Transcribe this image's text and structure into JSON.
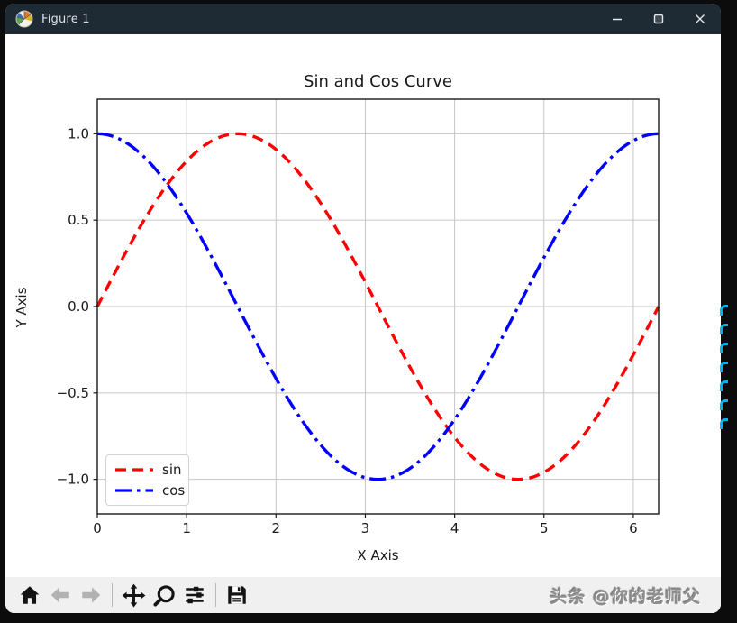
{
  "window": {
    "title": "Figure 1",
    "titlebar_bg": "#1e2b34",
    "controls": {
      "minimize": "minimize",
      "maximize": "maximize",
      "close": "close"
    }
  },
  "chart_data": {
    "type": "line",
    "title": "Sin and Cos Curve",
    "xlabel": "X Axis",
    "ylabel": "Y Axis",
    "xlim": [
      0,
      6.2832
    ],
    "ylim": [
      -1.2,
      1.2
    ],
    "x_ticks": [
      0,
      1,
      2,
      3,
      4,
      5,
      6
    ],
    "x_tick_labels": [
      "0",
      "1",
      "2",
      "3",
      "4",
      "5",
      "6"
    ],
    "y_ticks": [
      1.0,
      0.5,
      0.0,
      -0.5,
      -1.0
    ],
    "y_tick_labels": [
      "1.0",
      "0.5",
      "0.0",
      "−0.5",
      "−1.0"
    ],
    "grid": true,
    "grid_color": "#c6c6c6",
    "legend_position": "lower left",
    "series": [
      {
        "name": "sin",
        "color": "#ff0000",
        "style": "dashed",
        "fn": "sin",
        "x": [
          0,
          0.393,
          0.785,
          1.178,
          1.571,
          1.963,
          2.356,
          2.749,
          3.142,
          3.534,
          3.927,
          4.32,
          4.712,
          5.105,
          5.498,
          5.89,
          6.283
        ],
        "y": [
          0,
          0.383,
          0.707,
          0.924,
          1,
          0.924,
          0.707,
          0.383,
          0,
          -0.383,
          -0.707,
          -0.924,
          -1,
          -0.924,
          -0.707,
          -0.383,
          0
        ]
      },
      {
        "name": "cos",
        "color": "#0000ff",
        "style": "dashdot",
        "fn": "cos",
        "x": [
          0,
          0.393,
          0.785,
          1.178,
          1.571,
          1.963,
          2.356,
          2.749,
          3.142,
          3.534,
          3.927,
          4.32,
          4.712,
          5.105,
          5.498,
          5.89,
          6.283
        ],
        "y": [
          1,
          0.924,
          0.707,
          0.383,
          0,
          -0.383,
          -0.707,
          -0.924,
          -1,
          -0.924,
          -0.707,
          -0.383,
          0,
          0.383,
          0.707,
          0.924,
          1
        ]
      }
    ]
  },
  "toolbar": {
    "buttons": [
      {
        "name": "home",
        "disabled": false
      },
      {
        "name": "back",
        "disabled": true
      },
      {
        "name": "forward",
        "disabled": true
      },
      {
        "name": "pan",
        "disabled": false
      },
      {
        "name": "zoom",
        "disabled": false
      },
      {
        "name": "configure-subplots",
        "disabled": false
      },
      {
        "name": "save",
        "disabled": false
      }
    ],
    "watermark": "头条 @你的老师父"
  },
  "decoration": {
    "right_edge_marks": {
      "color": "#00b4ef",
      "count": 7,
      "description": "clipped cyan text glyphs at screenshot right edge"
    }
  }
}
